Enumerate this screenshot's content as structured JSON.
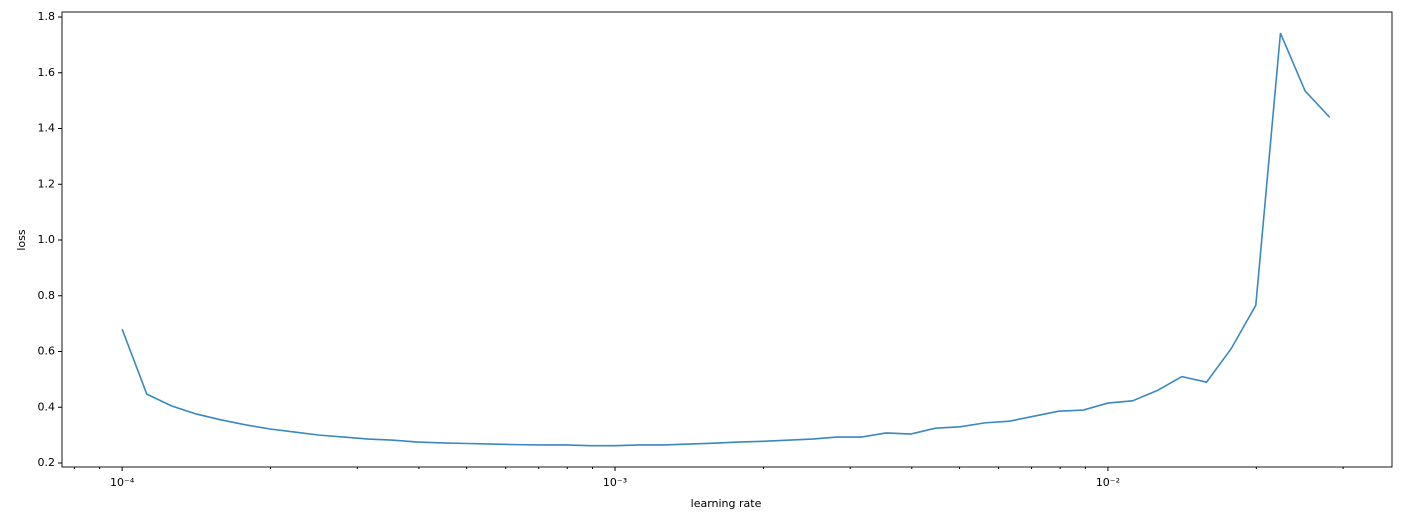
{
  "chart_data": {
    "type": "line",
    "xlabel": "learning rate",
    "ylabel": "loss",
    "xscale": "log",
    "x": [
      0.0001,
      0.000112202,
      0.000125893,
      0.000141254,
      0.000158489,
      0.000177828,
      0.000199526,
      0.000223872,
      0.000251189,
      0.000281838,
      0.000316228,
      0.000354813,
      0.000398107,
      0.000446684,
      0.000501187,
      0.000562341,
      0.000630957,
      0.000707946,
      0.000794328,
      0.000891251,
      0.001,
      0.00112202,
      0.00125893,
      0.00141254,
      0.00158489,
      0.00177828,
      0.00199526,
      0.00223872,
      0.00251189,
      0.00281838,
      0.00316228,
      0.00354813,
      0.00398107,
      0.00446684,
      0.00501187,
      0.00562341,
      0.00630957,
      0.00707946,
      0.00794328,
      0.00891251,
      0.01,
      0.0112202,
      0.0125893,
      0.0141254,
      0.0158489,
      0.0177828,
      0.0199526,
      0.0223872,
      0.0251189,
      0.0281838
    ],
    "series": [
      {
        "color": "#3a88c0",
        "values": [
          0.68,
          0.447,
          0.405,
          0.376,
          0.355,
          0.337,
          0.322,
          0.311,
          0.3,
          0.293,
          0.286,
          0.282,
          0.275,
          0.272,
          0.27,
          0.268,
          0.266,
          0.265,
          0.265,
          0.262,
          0.262,
          0.265,
          0.265,
          0.268,
          0.271,
          0.275,
          0.278,
          0.282,
          0.286,
          0.293,
          0.293,
          0.308,
          0.304,
          0.325,
          0.33,
          0.344,
          0.35,
          0.368,
          0.386,
          0.39,
          0.415,
          0.423,
          0.46,
          0.51,
          0.49,
          0.61,
          0.766,
          1.742,
          1.535,
          1.44
        ]
      }
    ],
    "xlim": [
      7.55e-05,
      0.0377
    ],
    "ylim": [
      0.1857,
      1.818
    ],
    "xticks": [
      {
        "value": 0.0001,
        "label": "10⁻⁴"
      },
      {
        "value": 0.001,
        "label": "10⁻³"
      },
      {
        "value": 0.01,
        "label": "10⁻²"
      }
    ],
    "xminorticks": [
      8e-05,
      9e-05,
      0.0002,
      0.0003,
      0.0004,
      0.0005,
      0.0006,
      0.0007,
      0.0008,
      0.0009,
      0.002,
      0.003,
      0.004,
      0.005,
      0.006,
      0.007,
      0.008,
      0.009,
      0.02,
      0.03
    ],
    "yticks": [
      0.2,
      0.4,
      0.6,
      0.8,
      {
        "value": 1,
        "label": "1.0"
      },
      1.2,
      1.4,
      1.6,
      1.8
    ],
    "grid": false
  }
}
